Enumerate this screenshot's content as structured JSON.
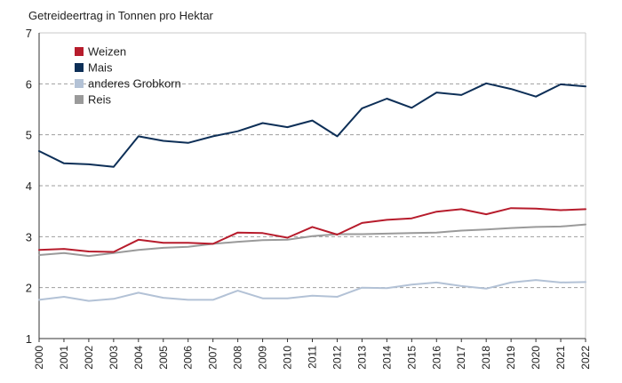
{
  "chart_data": {
    "type": "line",
    "title": "",
    "ylabel": "Getreideertrag in Tonnen pro Hektar",
    "xlabel": "",
    "ylim": [
      1,
      7
    ],
    "yticks": [
      "1",
      "2",
      "3",
      "4",
      "5",
      "6",
      "7"
    ],
    "grid": "horizontal dashed",
    "legend_position": "top-left",
    "x": [
      "2000",
      "2001",
      "2002",
      "2003",
      "2004",
      "2005",
      "2006",
      "2007",
      "2008",
      "2009",
      "2010",
      "2011",
      "2012",
      "2013",
      "2014",
      "2015",
      "2016",
      "2017",
      "2018",
      "2019",
      "2020",
      "2021",
      "2022"
    ],
    "series": [
      {
        "name": "Weizen",
        "color": "#b71c2c",
        "values": [
          2.74,
          2.76,
          2.71,
          2.7,
          2.94,
          2.88,
          2.88,
          2.86,
          3.08,
          3.07,
          2.98,
          3.19,
          3.04,
          3.27,
          3.33,
          3.36,
          3.49,
          3.54,
          3.44,
          3.56,
          3.55,
          3.52,
          3.54
        ]
      },
      {
        "name": "Mais",
        "color": "#0d2f57",
        "values": [
          4.68,
          4.44,
          4.42,
          4.37,
          4.97,
          4.88,
          4.84,
          4.97,
          5.07,
          5.23,
          5.15,
          5.28,
          4.97,
          5.52,
          5.71,
          5.53,
          5.83,
          5.78,
          6.01,
          5.9,
          5.75,
          5.99,
          5.95
        ]
      },
      {
        "name": "anderes Grobkorn",
        "color": "#b3c2d6",
        "values": [
          1.76,
          1.82,
          1.74,
          1.78,
          1.9,
          1.8,
          1.76,
          1.76,
          1.94,
          1.79,
          1.79,
          1.84,
          1.82,
          2.0,
          1.99,
          2.06,
          2.1,
          2.03,
          1.98,
          2.1,
          2.15,
          2.1,
          2.11
        ]
      },
      {
        "name": "Reis",
        "color": "#9a9a9a",
        "values": [
          2.64,
          2.68,
          2.62,
          2.68,
          2.74,
          2.78,
          2.8,
          2.86,
          2.9,
          2.93,
          2.94,
          3.01,
          3.05,
          3.05,
          3.06,
          3.07,
          3.08,
          3.12,
          3.14,
          3.17,
          3.19,
          3.2,
          3.24
        ]
      }
    ]
  }
}
